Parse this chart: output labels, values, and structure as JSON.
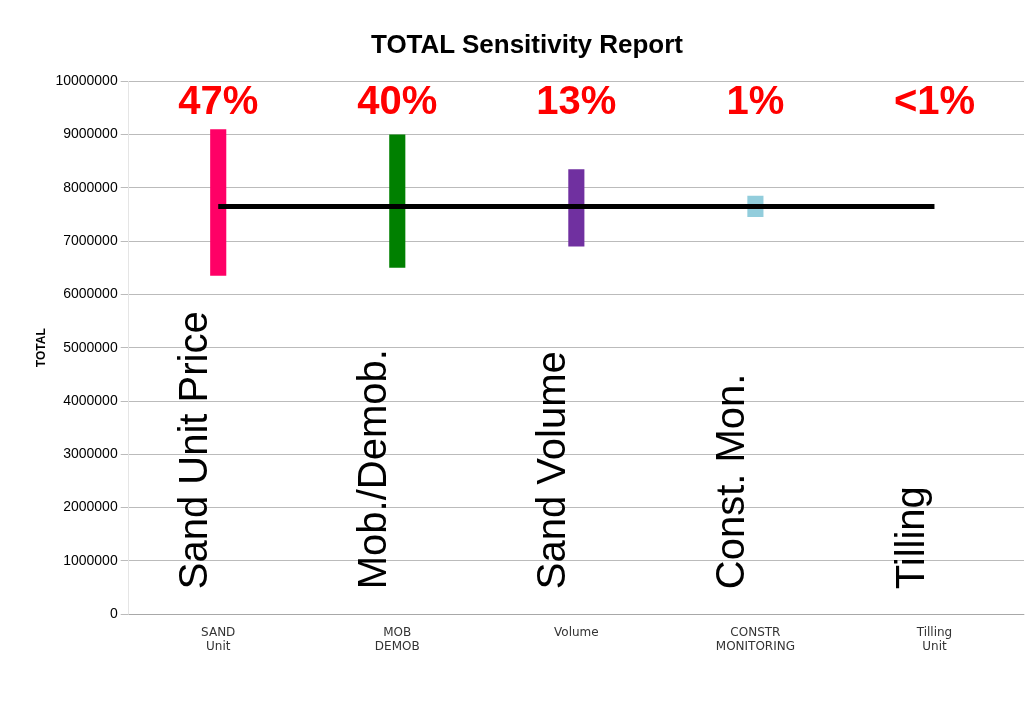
{
  "chart_data": {
    "type": "bar",
    "title": "TOTAL Sensitivity Report",
    "ylabel": "TOTAL",
    "categories": [
      "SAND Unit",
      "MOB DEMOB",
      "Volume",
      "CONSTR MONITORING",
      "Tilling Unit"
    ],
    "series": [
      {
        "colors": [
          "#ff0066",
          "#008000",
          "#7030a0",
          "#92cddc",
          null
        ],
        "base": [
          6350000,
          6500000,
          6900000,
          7450000,
          null
        ],
        "values": [
          2750000,
          2500000,
          1450000,
          400000,
          null
        ]
      },
      {
        "type": "line",
        "color": "#000000",
        "values": [
          7650000,
          7650000,
          7650000,
          7650000,
          7650000
        ]
      }
    ],
    "ylim": [
      0,
      10000000
    ],
    "yticks": [
      0,
      1000000,
      2000000,
      3000000,
      4000000,
      5000000,
      6000000,
      7000000,
      8000000,
      9000000,
      10000000
    ],
    "grid": "y",
    "marker": "none",
    "annotations": [
      "47%",
      "40%",
      "13%",
      "1%",
      "<1%",
      "Sand Unit Price",
      "Mob./Demob.",
      "Sand Volume",
      "Const. Mon.",
      "Tilling"
    ]
  }
}
